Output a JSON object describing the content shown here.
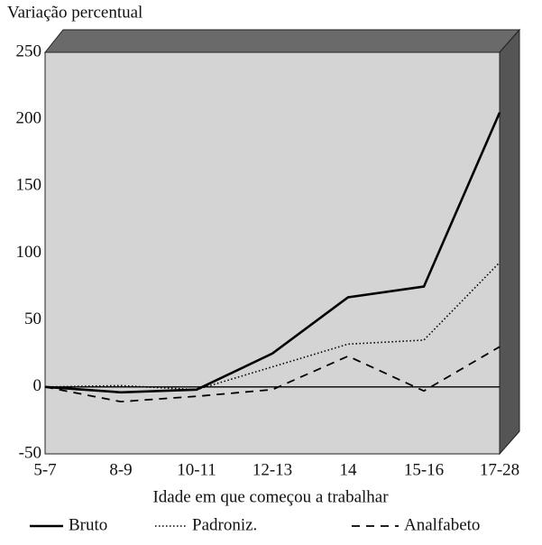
{
  "chart_data": {
    "type": "line",
    "y_axis_label": "Variação percentual",
    "x_axis_label": "Idade em que começou a trabalhar",
    "categories": [
      "5-7",
      "8-9",
      "10-11",
      "12-13",
      "14",
      "15-16",
      "17-28"
    ],
    "series": [
      {
        "name": "Bruto",
        "color": "#000000",
        "style": "solid",
        "values": [
          0,
          -4,
          -2,
          25,
          67,
          75,
          205
        ]
      },
      {
        "name": "Padroniz.",
        "color": "#000000",
        "style": "dotted",
        "values": [
          0,
          1,
          -2,
          15,
          32,
          35,
          93
        ]
      },
      {
        "name": "Analfabeto",
        "color": "#000000",
        "style": "dashed",
        "values": [
          0,
          -11,
          -7,
          -2,
          23,
          -3,
          30
        ]
      }
    ],
    "ylim": [
      -50,
      250
    ],
    "yticks": [
      -50,
      0,
      50,
      100,
      150,
      200,
      250
    ],
    "zero_line": true,
    "legend": "bottom"
  }
}
